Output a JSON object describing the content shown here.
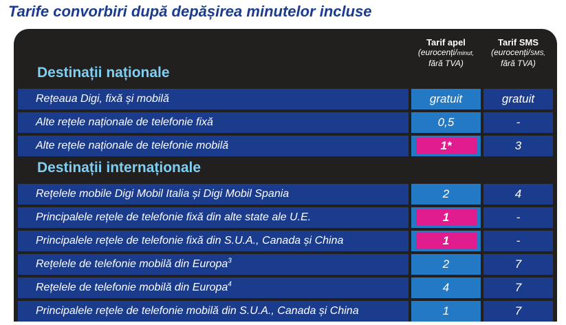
{
  "title": "Tarife convorbiri după depășirea minutelor incluse",
  "columns": {
    "call": {
      "title": "Tarif apel",
      "unit_main": "(eurocenți/",
      "unit_small": "minut,",
      "vat": "fără TVA)"
    },
    "sms": {
      "title": "Tarif SMS",
      "unit_main": "(eurocenți/",
      "unit_small": "SMS,",
      "vat": "fără TVA)"
    }
  },
  "national": {
    "heading": "Destinații naționale",
    "rows": [
      {
        "label": "Rețeaua Digi, fixă și mobilă",
        "call": "gratuit",
        "sms": "gratuit"
      },
      {
        "label": "Alte rețele naționale de telefonie fixă",
        "call": "0,5",
        "sms": "-"
      },
      {
        "label": "Alte rețele naționale de telefonie mobilă",
        "call": "1*",
        "sms": "3"
      }
    ]
  },
  "international": {
    "heading": "Destinații internaționale",
    "rows": [
      {
        "label": "Rețelele mobile Digi Mobil Italia și Digi Mobil Spania",
        "call": "2",
        "sms": "4"
      },
      {
        "label": "Principalele rețele de telefonie fixă din alte state ale U.E.",
        "call": "1",
        "sms": "-"
      },
      {
        "label": "Principalele rețele de telefonie fixă din S.U.A., Canada și China",
        "call": "1",
        "sms": "-"
      },
      {
        "label": "Rețelele de telefonie mobilă din Europa",
        "sup": "3",
        "call": "2",
        "sms": "7"
      },
      {
        "label": "Rețelele de telefonie mobilă din Europa",
        "sup": "4",
        "call": "4",
        "sms": "7"
      },
      {
        "label": "Principalele rețele de telefonie mobilă din S.U.A., Canada și China",
        "call": "1",
        "sms": "7"
      }
    ]
  },
  "colors": {
    "dark": "#221f1f",
    "blue": "#1b3c8c",
    "light_blue": "#2379c4",
    "magenta": "#e01c8f",
    "heading": "#7ecff2"
  }
}
